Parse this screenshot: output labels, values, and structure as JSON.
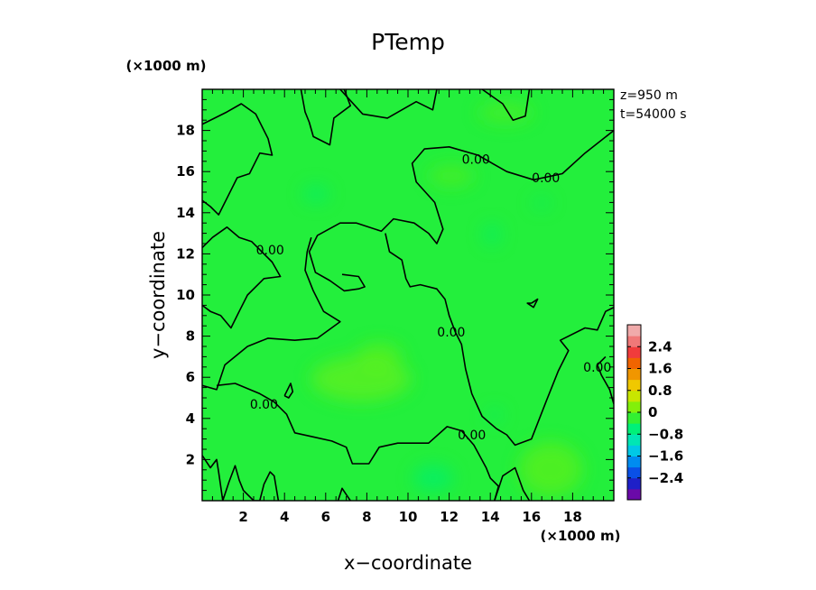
{
  "chart_data": {
    "type": "heatmap",
    "title": "PTemp",
    "xlabel": "x−coordinate",
    "ylabel": "y−coordinate",
    "x_unit_label": "(×1000 m)",
    "y_unit_label": "(×1000 m)",
    "xlim": [
      0,
      20
    ],
    "ylim": [
      0,
      20
    ],
    "x_ticks": [
      2,
      4,
      6,
      8,
      10,
      12,
      14,
      16,
      18
    ],
    "y_ticks": [
      2,
      4,
      6,
      8,
      10,
      12,
      14,
      16,
      18
    ],
    "x_tick_labels": [
      "2",
      "4",
      "6",
      "8",
      "10",
      "12",
      "14",
      "16",
      "18"
    ],
    "y_tick_labels": [
      "2",
      "4",
      "6",
      "8",
      "10",
      "12",
      "14",
      "16",
      "18"
    ],
    "annotation_z": "z=950 m",
    "annotation_t": "t=54000 s",
    "contour_level_label": "0.00",
    "contour_label_positions": [
      {
        "x": 13.3,
        "y": 16.6
      },
      {
        "x": 16.7,
        "y": 15.7
      },
      {
        "x": 3.3,
        "y": 12.2
      },
      {
        "x": 12.1,
        "y": 8.2
      },
      {
        "x": 19.2,
        "y": 6.5
      },
      {
        "x": 3.0,
        "y": 4.7
      },
      {
        "x": 13.1,
        "y": 3.2
      }
    ],
    "contour_lines": [
      [
        [
          0,
          18.3
        ],
        [
          1.2,
          18.9
        ],
        [
          1.9,
          19.3
        ],
        [
          2.6,
          18.8
        ],
        [
          3.2,
          17.6
        ],
        [
          3.4,
          16.8
        ],
        [
          2.8,
          16.9
        ],
        [
          2.3,
          15.9
        ],
        [
          1.7,
          15.7
        ],
        [
          1.2,
          14.7
        ],
        [
          0.8,
          13.9
        ],
        [
          0.4,
          14.3
        ],
        [
          0,
          14.6
        ]
      ],
      [
        [
          6.9,
          20
        ],
        [
          7.2,
          19.2
        ],
        [
          6.4,
          18.6
        ],
        [
          6.2,
          17.3
        ],
        [
          5.4,
          17.7
        ],
        [
          5.2,
          18.4
        ],
        [
          5.0,
          18.9
        ],
        [
          4.8,
          20
        ]
      ],
      [
        [
          6.7,
          20
        ],
        [
          7.8,
          18.8
        ],
        [
          9.0,
          18.6
        ],
        [
          10.4,
          19.4
        ],
        [
          11.2,
          19.0
        ],
        [
          11.4,
          20
        ]
      ],
      [
        [
          13.6,
          20
        ],
        [
          14.6,
          19.3
        ],
        [
          15.1,
          18.5
        ],
        [
          15.7,
          18.7
        ],
        [
          15.9,
          20
        ]
      ],
      [
        [
          20,
          18.0
        ],
        [
          18.6,
          16.9
        ],
        [
          17.5,
          15.9
        ],
        [
          16.1,
          15.6
        ],
        [
          14.8,
          16.0
        ],
        [
          13.4,
          16.8
        ],
        [
          12.0,
          17.2
        ],
        [
          10.8,
          17.1
        ],
        [
          10.2,
          16.4
        ],
        [
          10.4,
          15.5
        ],
        [
          11.3,
          14.5
        ],
        [
          11.7,
          13.2
        ],
        [
          11.4,
          12.5
        ],
        [
          11.0,
          13.0
        ],
        [
          10.3,
          13.5
        ],
        [
          9.3,
          13.7
        ],
        [
          8.7,
          13.1
        ],
        [
          7.5,
          13.5
        ],
        [
          6.7,
          13.5
        ],
        [
          5.6,
          12.9
        ],
        [
          5.2,
          12.1
        ],
        [
          5.5,
          11.1
        ],
        [
          6.2,
          10.7
        ],
        [
          6.9,
          10.2
        ],
        [
          7.6,
          10.3
        ],
        [
          7.9,
          10.4
        ],
        [
          7.6,
          10.9
        ],
        [
          6.8,
          11.0
        ]
      ],
      [
        [
          0,
          12.3
        ],
        [
          0.5,
          12.8
        ],
        [
          1.2,
          13.3
        ],
        [
          1.8,
          12.8
        ],
        [
          2.4,
          12.6
        ],
        [
          3.4,
          11.6
        ],
        [
          3.8,
          10.9
        ],
        [
          3.0,
          10.8
        ],
        [
          2.2,
          10.0
        ],
        [
          1.8,
          9.2
        ],
        [
          1.4,
          8.4
        ],
        [
          0.9,
          9.0
        ],
        [
          0.4,
          9.2
        ],
        [
          0,
          9.5
        ]
      ],
      [
        [
          0,
          5.6
        ],
        [
          0.7,
          5.4
        ],
        [
          1.1,
          6.6
        ],
        [
          2.2,
          7.5
        ],
        [
          3.2,
          7.9
        ],
        [
          4.5,
          7.8
        ],
        [
          5.6,
          7.9
        ],
        [
          6.7,
          8.7
        ],
        [
          5.9,
          9.2
        ],
        [
          5.4,
          10.2
        ],
        [
          5.0,
          11.2
        ],
        [
          5.1,
          12.1
        ],
        [
          5.3,
          12.8
        ]
      ],
      [
        [
          0.7,
          5.6
        ],
        [
          1.6,
          5.7
        ],
        [
          2.8,
          5.2
        ],
        [
          3.5,
          4.8
        ],
        [
          4.1,
          4.2
        ],
        [
          4.5,
          3.3
        ],
        [
          5.4,
          3.1
        ],
        [
          6.3,
          2.9
        ],
        [
          7.0,
          2.6
        ],
        [
          7.3,
          1.8
        ],
        [
          8.1,
          1.8
        ],
        [
          8.6,
          2.6
        ],
        [
          9.5,
          2.8
        ],
        [
          10.3,
          2.8
        ],
        [
          11.0,
          2.8
        ],
        [
          11.9,
          3.6
        ],
        [
          12.6,
          3.4
        ],
        [
          13.2,
          2.7
        ],
        [
          13.8,
          1.6
        ],
        [
          14.0,
          1.1
        ],
        [
          14.4,
          0.7
        ],
        [
          14.2,
          0
        ]
      ],
      [
        [
          8.9,
          13.0
        ],
        [
          9.1,
          12.1
        ],
        [
          9.7,
          11.7
        ],
        [
          9.9,
          10.8
        ],
        [
          10.1,
          10.4
        ],
        [
          10.6,
          10.5
        ],
        [
          11.4,
          10.3
        ],
        [
          11.8,
          9.8
        ],
        [
          12.0,
          9.0
        ],
        [
          12.3,
          8.2
        ],
        [
          12.6,
          7.6
        ],
        [
          12.8,
          6.4
        ],
        [
          13.1,
          5.2
        ],
        [
          13.6,
          4.1
        ],
        [
          14.3,
          3.5
        ],
        [
          14.8,
          3.2
        ],
        [
          15.2,
          2.7
        ],
        [
          16.0,
          3.0
        ],
        [
          16.7,
          4.8
        ],
        [
          17.3,
          6.3
        ],
        [
          17.8,
          7.3
        ],
        [
          17.4,
          7.8
        ],
        [
          18.6,
          8.4
        ],
        [
          19.2,
          8.3
        ],
        [
          19.6,
          9.2
        ],
        [
          20,
          9.4
        ]
      ],
      [
        [
          20,
          4.7
        ],
        [
          19.8,
          5.4
        ],
        [
          19.4,
          6.1
        ],
        [
          19.2,
          6.6
        ],
        [
          19.6,
          7.0
        ]
      ],
      [
        [
          14.2,
          0
        ],
        [
          14.6,
          1.2
        ],
        [
          15.2,
          1.6
        ],
        [
          15.6,
          0.5
        ],
        [
          15.9,
          0
        ]
      ],
      [
        [
          1.0,
          0
        ],
        [
          1.3,
          0.9
        ],
        [
          1.6,
          1.7
        ],
        [
          1.8,
          1.0
        ],
        [
          2.0,
          0.5
        ],
        [
          2.5,
          0
        ],
        [
          2.8,
          0
        ],
        [
          3.0,
          0.8
        ],
        [
          3.3,
          1.4
        ],
        [
          3.5,
          1.2
        ],
        [
          3.7,
          0
        ]
      ],
      [
        [
          6.6,
          0
        ],
        [
          6.8,
          0.6
        ],
        [
          7.0,
          0.3
        ],
        [
          7.2,
          0
        ]
      ],
      [
        [
          0,
          2.2
        ],
        [
          0.4,
          1.6
        ],
        [
          0.7,
          2.0
        ],
        [
          0.8,
          1.4
        ],
        [
          1.0,
          0
        ]
      ],
      [
        [
          4.0,
          5.1
        ],
        [
          4.3,
          5.7
        ],
        [
          4.4,
          5.3
        ],
        [
          4.2,
          5.0
        ],
        [
          4.0,
          5.1
        ]
      ],
      [
        [
          16.0,
          9.6
        ],
        [
          16.3,
          9.8
        ],
        [
          16.1,
          9.4
        ],
        [
          15.8,
          9.6
        ],
        [
          16.0,
          9.6
        ]
      ]
    ],
    "colorbar": {
      "labels": [
        "2.4",
        "1.6",
        "0.8",
        "0",
        "−0.8",
        "−1.6",
        "−2.4"
      ],
      "label_values": [
        2.4,
        1.6,
        0.8,
        0,
        -0.8,
        -1.6,
        -2.4
      ],
      "range": [
        -3.2,
        3.2
      ],
      "colors": [
        "#6a0aa8",
        "#1e20c8",
        "#0a50e6",
        "#008cf0",
        "#00c8e6",
        "#00e6b4",
        "#00f078",
        "#32f032",
        "#82f00a",
        "#c8e600",
        "#f0c800",
        "#f09600",
        "#f06400",
        "#f03c3c",
        "#f07878",
        "#f0aaaa"
      ]
    },
    "field_base_color": "#23ef3c"
  }
}
